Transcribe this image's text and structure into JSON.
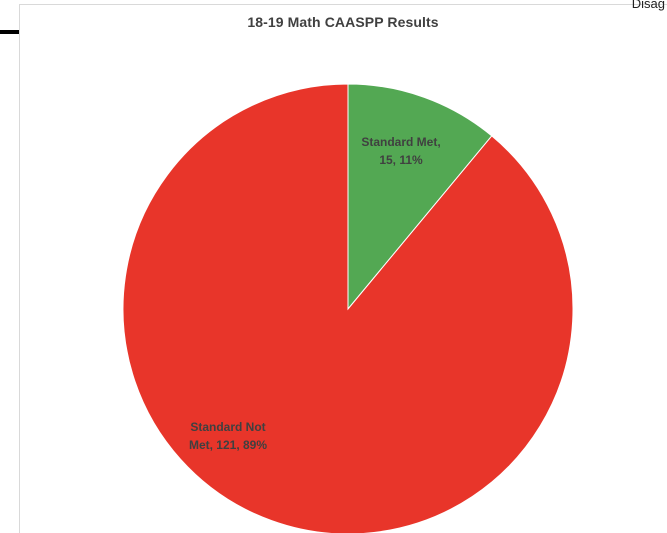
{
  "page": {
    "corner_text": "Disag"
  },
  "chart_data": {
    "type": "pie",
    "title": "18-19 Math CAASPP Results",
    "legend": "none",
    "start_angle_deg": 0,
    "direction": "clockwise",
    "slices": [
      {
        "name": "Standard Met",
        "value": 15,
        "percent": "11%",
        "label_lines": [
          "Standard Met,",
          "15, 11%"
        ],
        "color": "#53a853"
      },
      {
        "name": "Standard Not Met",
        "value": 121,
        "percent": "89%",
        "label_lines": [
          "Standard Not",
          "Met, 121, 89%"
        ],
        "color": "#e8352a"
      }
    ]
  }
}
